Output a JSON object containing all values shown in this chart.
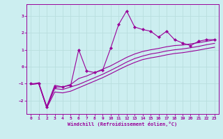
{
  "xlabel": "Windchill (Refroidissement éolien,°C)",
  "bg_color": "#cceef0",
  "grid_color": "#aadddd",
  "line_color": "#990099",
  "x_data": [
    0,
    1,
    2,
    3,
    4,
    5,
    6,
    7,
    8,
    9,
    10,
    11,
    12,
    13,
    14,
    15,
    16,
    17,
    18,
    19,
    20,
    21,
    22,
    23
  ],
  "y_main": [
    -1.0,
    -1.0,
    -2.4,
    -1.2,
    -1.2,
    -1.1,
    1.0,
    -0.25,
    -0.35,
    -0.2,
    1.1,
    2.5,
    3.3,
    2.35,
    2.2,
    2.1,
    1.75,
    2.1,
    1.6,
    1.4,
    1.25,
    1.5,
    1.6,
    1.6
  ],
  "y_line1": [
    -1.05,
    -0.95,
    -2.35,
    -1.1,
    -1.2,
    -1.05,
    -0.7,
    -0.55,
    -0.35,
    -0.15,
    0.05,
    0.3,
    0.55,
    0.75,
    0.9,
    1.0,
    1.08,
    1.18,
    1.25,
    1.28,
    1.35,
    1.42,
    1.5,
    1.58
  ],
  "y_line2": [
    -1.05,
    -1.0,
    -2.4,
    -1.3,
    -1.35,
    -1.2,
    -1.05,
    -0.85,
    -0.65,
    -0.45,
    -0.22,
    0.02,
    0.27,
    0.48,
    0.63,
    0.75,
    0.83,
    0.93,
    1.0,
    1.05,
    1.12,
    1.2,
    1.3,
    1.38
  ],
  "y_line3": [
    -1.05,
    -1.0,
    -2.45,
    -1.5,
    -1.55,
    -1.45,
    -1.25,
    -1.05,
    -0.85,
    -0.65,
    -0.42,
    -0.18,
    0.05,
    0.25,
    0.42,
    0.52,
    0.6,
    0.7,
    0.78,
    0.83,
    0.9,
    0.98,
    1.07,
    1.15
  ],
  "ylim": [
    -2.8,
    3.7
  ],
  "xlim": [
    -0.5,
    23.5
  ],
  "yticks": [
    -2,
    -1,
    0,
    1,
    2,
    3
  ],
  "xticks": [
    0,
    1,
    2,
    3,
    4,
    5,
    6,
    7,
    8,
    9,
    10,
    11,
    12,
    13,
    14,
    15,
    16,
    17,
    18,
    19,
    20,
    21,
    22,
    23
  ]
}
